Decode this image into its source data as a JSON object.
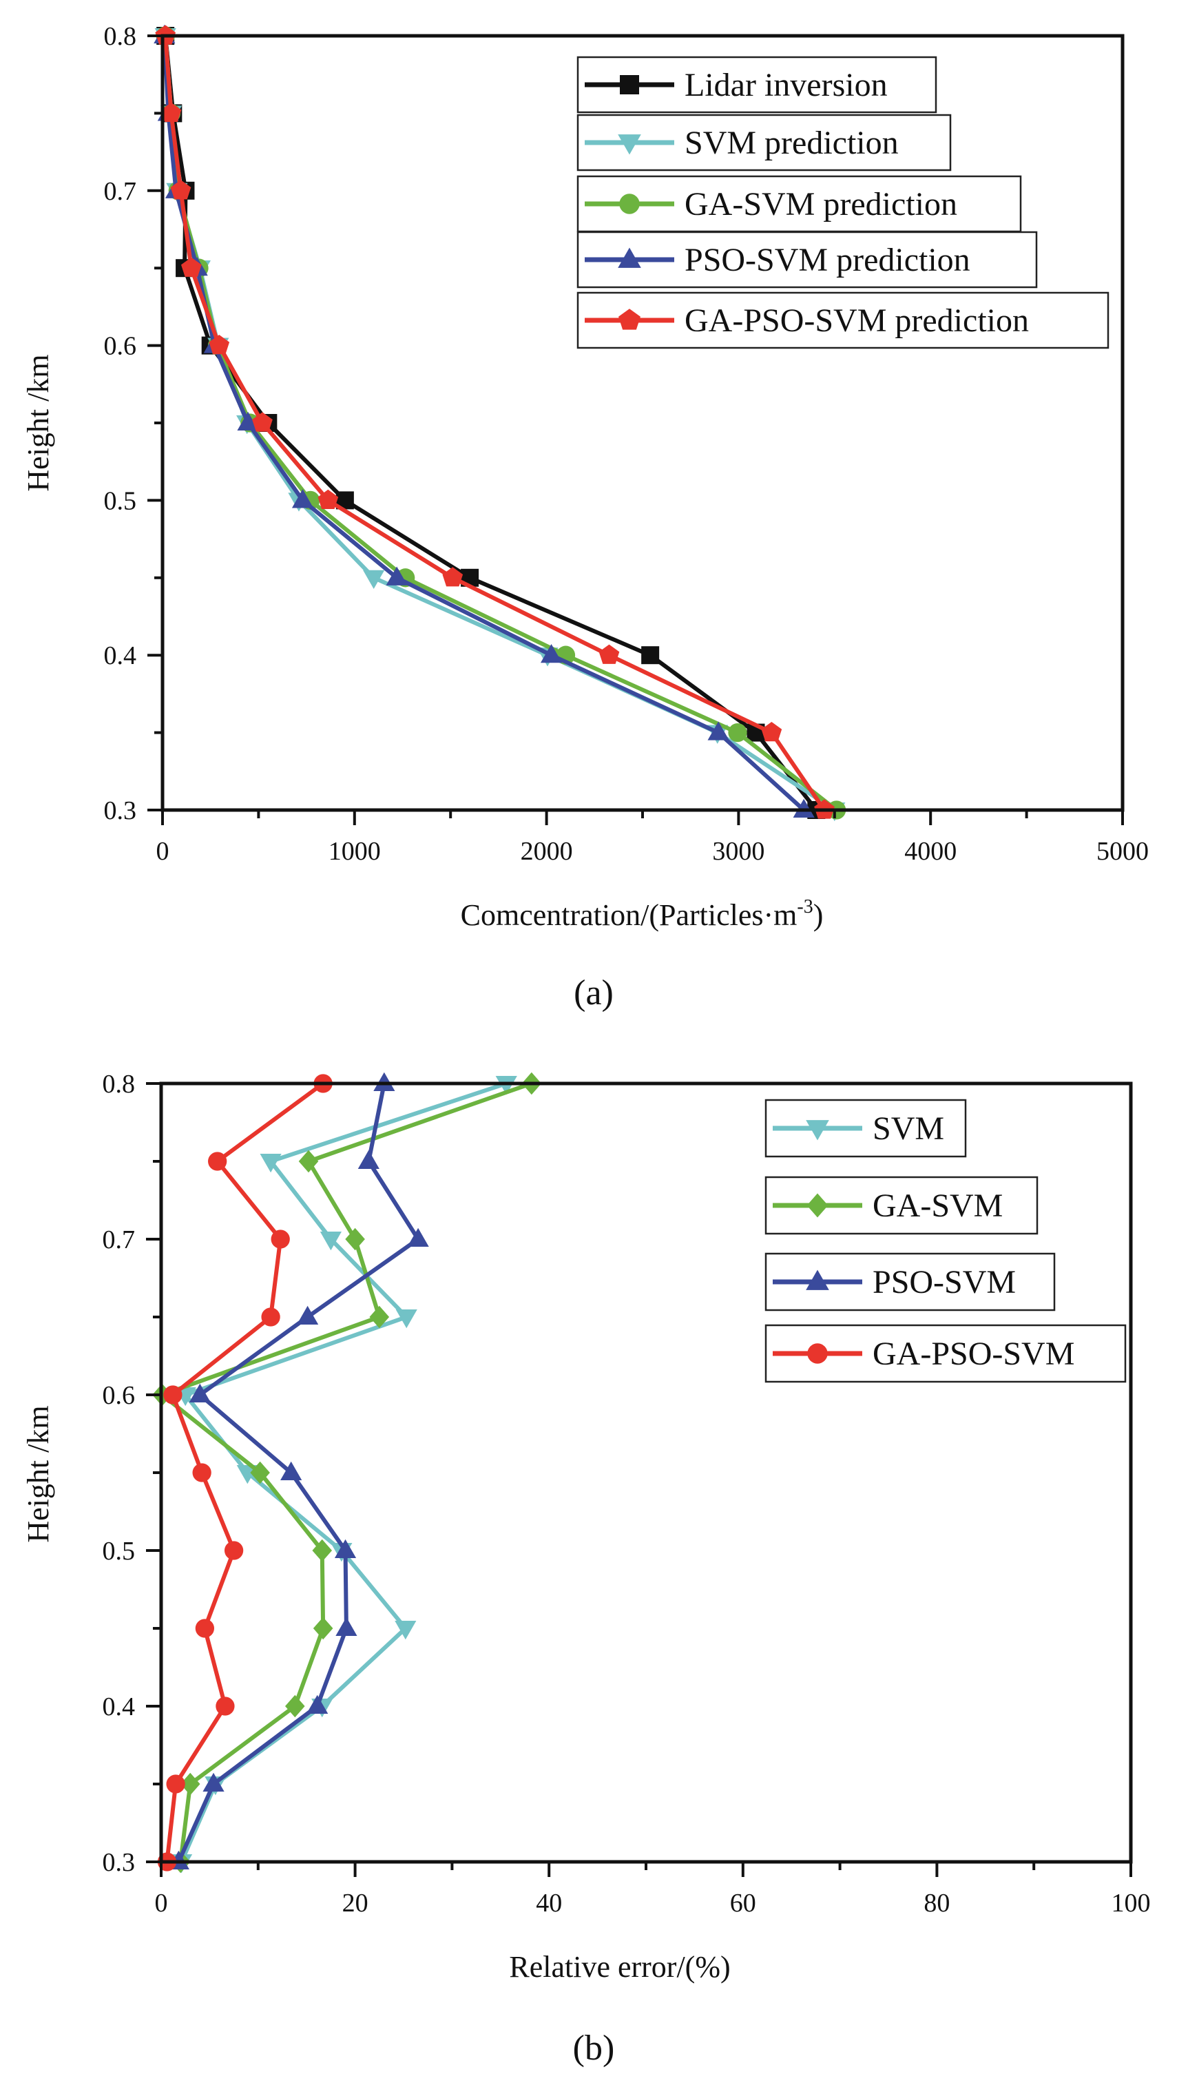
{
  "chart_data": [
    {
      "id": "a",
      "type": "line",
      "panel_label": "(a)",
      "title": "",
      "xlabel": "Comcentration/(Particles·m",
      "xlabel_superscript": "-3",
      "xlabel_suffix": ")",
      "ylabel": "Height /km",
      "xlim": [
        0,
        5000
      ],
      "ylim": [
        0.3,
        0.8
      ],
      "x_ticks": [
        0,
        1000,
        2000,
        3000,
        4000,
        5000
      ],
      "x_tick_labels": [
        "0",
        "1000",
        "2000",
        "3000",
        "4000",
        "5000"
      ],
      "x_minor_step": 500,
      "y_ticks": [
        0.3,
        0.4,
        0.5,
        0.6,
        0.7,
        0.8
      ],
      "y_tick_labels": [
        "0.3",
        "0.4",
        "0.5",
        "0.6",
        "0.7",
        "0.8"
      ],
      "y_minor_step": 0.05,
      "grid": false,
      "legend_position": "top-right",
      "y": [
        0.8,
        0.75,
        0.7,
        0.65,
        0.6,
        0.55,
        0.5,
        0.45,
        0.4,
        0.35,
        0.3
      ],
      "series": [
        {
          "name": "Lidar inversion",
          "color": "#111111",
          "marker": "square",
          "values": [
            15,
            55,
            120,
            115,
            250,
            550,
            950,
            1600,
            2540,
            3090,
            3405
          ]
        },
        {
          "name": "SVM prediction",
          "color": "#72c2c6",
          "marker": "triangle-down",
          "values": [
            15,
            45,
            75,
            195,
            290,
            440,
            710,
            1100,
            2005,
            2890,
            3500
          ]
        },
        {
          "name": "GA-SVM prediction",
          "color": "#6cb33f",
          "marker": "circle",
          "values": [
            15,
            45,
            80,
            190,
            285,
            455,
            770,
            1265,
            2100,
            2995,
            3510
          ]
        },
        {
          "name": "PSO-SVM prediction",
          "color": "#3a4a9c",
          "marker": "triangle-up",
          "values": [
            10,
            30,
            70,
            180,
            270,
            445,
            730,
            1220,
            2025,
            2895,
            3340
          ]
        },
        {
          "name": "GA-PSO-SVM prediction",
          "color": "#e8352c",
          "marker": "pentagon",
          "values": [
            15,
            45,
            95,
            150,
            295,
            520,
            862,
            1511,
            2326,
            3172,
            3447
          ]
        }
      ]
    },
    {
      "id": "b",
      "type": "line",
      "panel_label": "(b)",
      "title": "",
      "xlabel": "Relative error/(%)",
      "ylabel": "Height /km",
      "xlim": [
        0,
        100
      ],
      "ylim": [
        0.3,
        0.8
      ],
      "x_ticks": [
        0,
        20,
        40,
        60,
        80,
        100
      ],
      "x_tick_labels": [
        "0",
        "20",
        "40",
        "60",
        "80",
        "100"
      ],
      "x_minor_step": 10,
      "y_ticks": [
        0.3,
        0.4,
        0.5,
        0.6,
        0.7,
        0.8
      ],
      "y_tick_labels": [
        "0.3",
        "0.4",
        "0.5",
        "0.6",
        "0.7",
        "0.8"
      ],
      "y_minor_step": 0.05,
      "grid": false,
      "legend_position": "top-right",
      "y": [
        0.8,
        0.75,
        0.7,
        0.65,
        0.6,
        0.55,
        0.5,
        0.45,
        0.4,
        0.35,
        0.3
      ],
      "series": [
        {
          "name": "SVM",
          "color": "#72c2c6",
          "marker": "triangle-down",
          "values": [
            35.6,
            11.3,
            17.5,
            25.3,
            2.5,
            8.9,
            18.6,
            25.2,
            16.6,
            5.6,
            2.1
          ]
        },
        {
          "name": "GA-SVM",
          "color": "#6cb33f",
          "marker": "diamond",
          "values": [
            38.2,
            15.2,
            20.0,
            22.5,
            0.1,
            10.2,
            16.6,
            16.7,
            13.8,
            3.0,
            2.0
          ]
        },
        {
          "name": "PSO-SVM",
          "color": "#3a4a9c",
          "marker": "triangle-up",
          "values": [
            23.0,
            21.4,
            26.5,
            15.1,
            4.0,
            13.4,
            19.0,
            19.1,
            16.1,
            5.4,
            1.8
          ]
        },
        {
          "name": "GA-PSO-SVM",
          "color": "#e8352c",
          "marker": "circle",
          "values": [
            16.7,
            5.8,
            12.3,
            11.3,
            1.2,
            4.2,
            7.5,
            4.5,
            6.6,
            1.5,
            0.6
          ]
        }
      ]
    }
  ]
}
